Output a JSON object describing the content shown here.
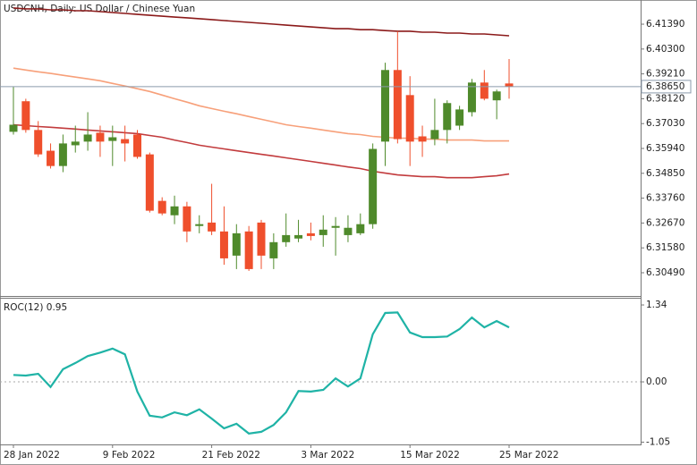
{
  "chart_data": [
    {
      "type": "candlestick",
      "title": "USDCNH, Daily:  US Dollar / Chinese Yuan",
      "open": [
        6.3667,
        6.3801,
        6.3675,
        6.3584,
        6.3517,
        6.3608,
        6.3624,
        6.3663,
        6.3627,
        6.3635,
        6.3655,
        6.3568,
        6.3364,
        6.3301,
        6.334,
        6.3254,
        6.3269,
        6.323,
        6.3124,
        6.323,
        6.3269,
        6.3112,
        6.3183,
        6.3199,
        6.3222,
        6.3214,
        6.3246,
        6.3214,
        6.3222,
        6.3262,
        6.3624,
        6.3938,
        6.3828,
        6.3647,
        6.3635,
        6.3675,
        6.3694,
        6.3753,
        6.3883,
        6.3805,
        6.3879
      ],
      "high": [
        6.3864,
        6.3812,
        6.3714,
        6.3616,
        6.3655,
        6.3694,
        6.3753,
        6.3694,
        6.3694,
        6.3694,
        6.3675,
        6.3576,
        6.338,
        6.3387,
        6.336,
        6.3301,
        6.3439,
        6.334,
        6.3262,
        6.3254,
        6.3281,
        6.3222,
        6.3309,
        6.3281,
        6.3269,
        6.3301,
        6.3293,
        6.3301,
        6.3309,
        6.3616,
        6.397,
        6.4108,
        6.3911,
        6.3694,
        6.3812,
        6.3805,
        6.3781,
        6.3899,
        6.3938,
        6.3852,
        6.3986
      ],
      "low": [
        6.3655,
        6.3663,
        6.3557,
        6.3506,
        6.349,
        6.3576,
        6.3584,
        6.3557,
        6.3517,
        6.3537,
        6.3549,
        6.3313,
        6.3301,
        6.3262,
        6.3183,
        6.3222,
        6.3214,
        6.3084,
        6.3065,
        6.3057,
        6.3065,
        6.3065,
        6.3163,
        6.3183,
        6.3191,
        6.3163,
        6.3124,
        6.3183,
        6.3214,
        6.3242,
        6.3517,
        6.3616,
        6.3517,
        6.3557,
        6.3608,
        6.3616,
        6.3675,
        6.3734,
        6.3805,
        6.3722,
        6.3812
      ],
      "close": [
        6.3698,
        6.3675,
        6.3568,
        6.3517,
        6.3616,
        6.3624,
        6.3655,
        6.3624,
        6.3643,
        6.3616,
        6.3557,
        6.3321,
        6.3309,
        6.334,
        6.323,
        6.3262,
        6.323,
        6.3112,
        6.3222,
        6.3065,
        6.3124,
        6.3183,
        6.3214,
        6.3214,
        6.321,
        6.3238,
        6.3254,
        6.3246,
        6.3262,
        6.3592,
        6.3938,
        6.3635,
        6.3624,
        6.3624,
        6.3675,
        6.3793,
        6.3765,
        6.3883,
        6.3812,
        6.3844,
        6.3865
      ],
      "up_color": "#4f8a2b",
      "down_color": "#ef4f2c",
      "series": [
        {
          "color": "#8b1a1a",
          "values": [
            6.421,
            6.4206,
            6.4206,
            6.4202,
            6.4202,
            6.4198,
            6.4198,
            6.4194,
            6.419,
            6.4186,
            6.4182,
            6.4178,
            6.4174,
            6.417,
            6.4167,
            6.4163,
            6.4159,
            6.4155,
            6.4151,
            6.4147,
            6.4143,
            6.4139,
            6.4135,
            6.4131,
            6.4127,
            6.4123,
            6.4119,
            6.4119,
            6.4115,
            6.4115,
            6.4111,
            6.4108,
            6.4108,
            6.4104,
            6.4104,
            6.41,
            6.41,
            6.4096,
            6.4096,
            6.4092,
            6.4088
          ]
        },
        {
          "color": "#f7a07a",
          "values": [
            6.3946,
            6.3938,
            6.393,
            6.3923,
            6.3915,
            6.3907,
            6.3899,
            6.3891,
            6.3879,
            6.3868,
            6.3856,
            6.3844,
            6.3828,
            6.3812,
            6.3797,
            6.3781,
            6.3769,
            6.3757,
            6.3746,
            6.3734,
            6.3722,
            6.371,
            6.3698,
            6.369,
            6.3683,
            6.3675,
            6.3667,
            6.3659,
            6.3655,
            6.3647,
            6.3643,
            6.3639,
            6.3639,
            6.3635,
            6.3635,
            6.3631,
            6.3631,
            6.3631,
            6.3627,
            6.3627,
            6.3627
          ]
        },
        {
          "color": "#c23b3d",
          "values": [
            6.3698,
            6.3694,
            6.369,
            6.3687,
            6.3683,
            6.3679,
            6.3675,
            6.3671,
            6.3667,
            6.3663,
            6.3659,
            6.3651,
            6.3643,
            6.3631,
            6.362,
            6.3608,
            6.36,
            6.3592,
            6.3584,
            6.3576,
            6.3568,
            6.3561,
            6.3553,
            6.3545,
            6.3537,
            6.3529,
            6.3521,
            6.3513,
            6.3506,
            6.3494,
            6.3486,
            6.3478,
            6.3474,
            6.347,
            6.347,
            6.3466,
            6.3466,
            6.3466,
            6.347,
            6.3474,
            6.3482
          ]
        }
      ],
      "current_price": {
        "value": 6.3865,
        "label": "6.38650"
      },
      "current_price_color": "#8a9aab",
      "ylim": [
        6.2947,
        6.4245
      ],
      "yticks": [
        {
          "value": 6.4139,
          "label": "6.41390"
        },
        {
          "value": 6.403,
          "label": "6.40300"
        },
        {
          "value": 6.3921,
          "label": "6.39210"
        },
        {
          "value": 6.3812,
          "label": "6.38120"
        },
        {
          "value": 6.3703,
          "label": "6.37030"
        },
        {
          "value": 6.3594,
          "label": "6.35940"
        },
        {
          "value": 6.3485,
          "label": "6.34850"
        },
        {
          "value": 6.3376,
          "label": "6.33760"
        },
        {
          "value": 6.3267,
          "label": "6.32670"
        },
        {
          "value": 6.3158,
          "label": "6.31580"
        },
        {
          "value": 6.3049,
          "label": "6.30490"
        }
      ]
    },
    {
      "type": "line",
      "title": "ROC(12) 0.95",
      "categories": [
        "28 Jan 2022",
        null,
        null,
        null,
        null,
        null,
        null,
        null,
        "9 Feb 2022",
        null,
        null,
        null,
        null,
        null,
        null,
        null,
        "21 Feb 2022",
        null,
        null,
        null,
        null,
        null,
        null,
        null,
        "3 Mar 2022",
        null,
        null,
        null,
        null,
        null,
        null,
        null,
        "15 Mar 2022",
        null,
        null,
        null,
        null,
        null,
        null,
        null,
        "25 Mar 2022"
      ],
      "values": [
        0.12,
        0.11,
        0.14,
        -0.09,
        0.22,
        0.33,
        0.45,
        0.51,
        0.58,
        0.48,
        -0.17,
        -0.59,
        -0.62,
        -0.53,
        -0.58,
        -0.48,
        -0.64,
        -0.81,
        -0.73,
        -0.9,
        -0.87,
        -0.75,
        -0.53,
        -0.16,
        -0.17,
        -0.14,
        0.06,
        -0.08,
        0.06,
        0.83,
        1.2,
        1.21,
        0.86,
        0.78,
        0.78,
        0.79,
        0.92,
        1.12,
        0.95,
        1.06,
        0.95
      ],
      "color": "#1fb3a6",
      "ylim": [
        -1.09,
        1.465
      ],
      "yticks": [
        1.34,
        {
          "value": 0,
          "label": "0.00"
        },
        -1.05
      ],
      "reference_line": 0
    }
  ]
}
